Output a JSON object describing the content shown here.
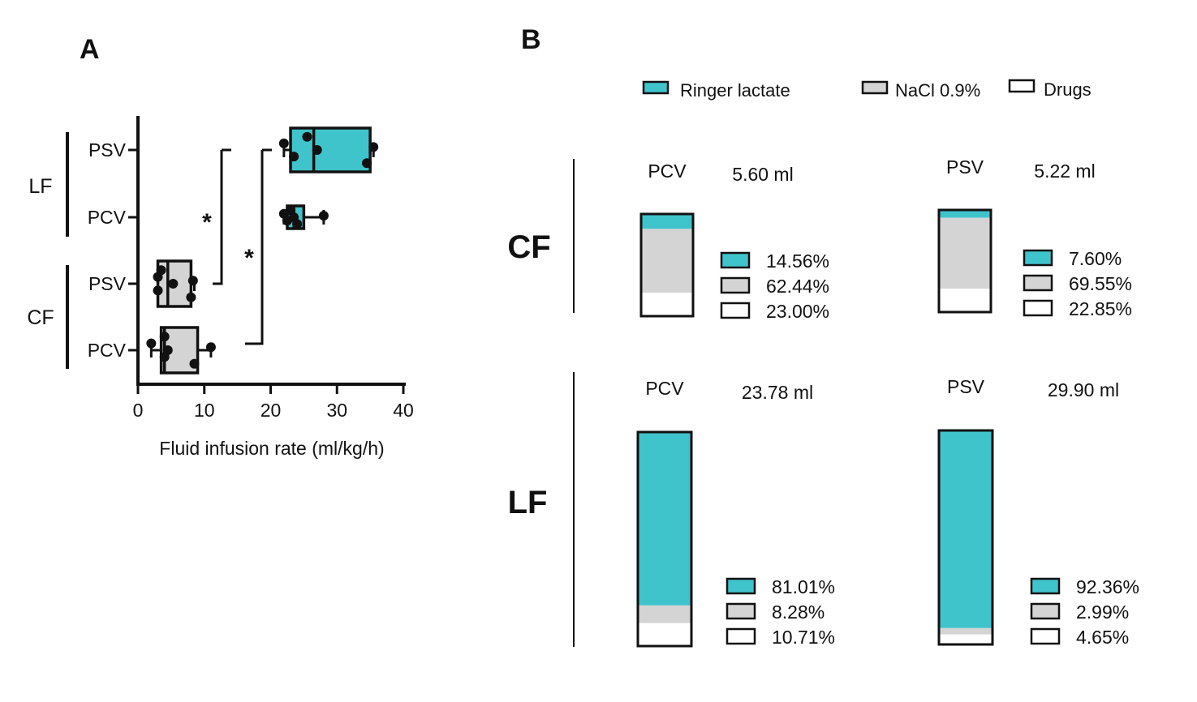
{
  "panel_a": {
    "label": "A"
  },
  "panel_b": {
    "label": "B"
  },
  "colors": {
    "ringer": "#40c4cb",
    "nacl": "#d4d4d4",
    "drugs": "#ffffff",
    "stroke": "#111111"
  },
  "chart_data": [
    {
      "type": "box",
      "panel": "A",
      "xlabel": "Fluid infusion rate (ml/kg/h)",
      "xlim": [
        0,
        40
      ],
      "xticks": [
        "0",
        "10",
        "20",
        "30",
        "40"
      ],
      "orientation": "horizontal",
      "groups": [
        {
          "name": "LF",
          "categories": [
            "PSV",
            "PCV"
          ]
        },
        {
          "name": "CF",
          "categories": [
            "PSV",
            "PCV"
          ]
        }
      ],
      "significance": [
        {
          "label": "*",
          "between": [
            "LF PCV",
            "CF PSV"
          ]
        },
        {
          "label": "*",
          "between": [
            "LF PSV",
            "CF PCV"
          ]
        }
      ],
      "series": [
        {
          "group": "LF",
          "category": "PSV",
          "color": "ringer",
          "whisker": [
            22,
            35.5
          ],
          "box": [
            23,
            35
          ],
          "median": 26.5,
          "points": [
            22,
            23.5,
            25.5,
            27,
            34.5,
            35.5
          ]
        },
        {
          "group": "LF",
          "category": "PCV",
          "color": "ringer",
          "whisker": [
            22,
            28
          ],
          "box": [
            22.5,
            25
          ],
          "median": 23.5,
          "points": [
            22,
            22.5,
            23,
            23.5,
            24,
            28
          ]
        },
        {
          "group": "CF",
          "category": "PSV",
          "color": "nacl",
          "whisker": [
            3,
            8.5
          ],
          "box": [
            3,
            8
          ],
          "median": 4.5,
          "points": [
            3,
            3,
            3.5,
            5.3,
            8,
            8.3
          ]
        },
        {
          "group": "CF",
          "category": "PCV",
          "color": "nacl",
          "whisker": [
            2,
            11
          ],
          "box": [
            3.5,
            9
          ],
          "median": 4,
          "points": [
            2,
            4,
            4,
            4.5,
            8.5,
            11
          ]
        }
      ]
    },
    {
      "type": "bar",
      "panel": "B",
      "stacked": true,
      "legend": {
        "position": "top",
        "entries": [
          "Ringer lactate",
          "NaCl 0.9%",
          "Drugs"
        ]
      },
      "bars": [
        {
          "group": "CF",
          "mode": "PCV",
          "total": "5.60 ml",
          "values": [
            14.56,
            62.44,
            23.0
          ],
          "labels": [
            "14.56%",
            "62.44%",
            "23.00%"
          ]
        },
        {
          "group": "CF",
          "mode": "PSV",
          "total": "5.22 ml",
          "values": [
            7.6,
            69.55,
            22.85
          ],
          "labels": [
            "7.60%",
            "69.55%",
            "22.85%"
          ]
        },
        {
          "group": "LF",
          "mode": "PCV",
          "total": "23.78 ml",
          "values": [
            81.01,
            8.28,
            10.71
          ],
          "labels": [
            "81.01%",
            "8.28%",
            "10.71%"
          ]
        },
        {
          "group": "LF",
          "mode": "PSV",
          "total": "29.90 ml",
          "values": [
            92.36,
            2.99,
            4.65
          ],
          "labels": [
            "92.36%",
            "2.99%",
            "4.65%"
          ]
        }
      ]
    }
  ]
}
